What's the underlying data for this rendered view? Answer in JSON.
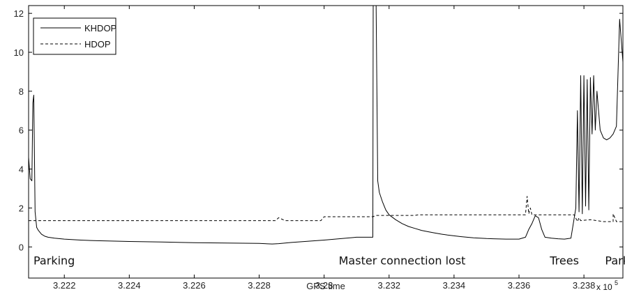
{
  "chart_data": {
    "type": "line",
    "xlabel": "GPS time",
    "ylabel": "",
    "title": "",
    "x_multiplier": {
      "base": "x 10",
      "exponent": "5"
    },
    "xlim": [
      3.2209,
      3.2392
    ],
    "ylim": [
      -1.6,
      12.4
    ],
    "x_ticks": [
      3.222,
      3.224,
      3.226,
      3.228,
      3.23,
      3.232,
      3.234,
      3.236,
      3.238
    ],
    "x_tick_labels": [
      "3.222",
      "3.224",
      "3.226",
      "3.228",
      "3.23",
      "3.232",
      "3.234",
      "3.236",
      "3.238"
    ],
    "y_ticks": [
      0,
      2,
      4,
      6,
      8,
      10,
      12
    ],
    "y_tick_labels": [
      "0",
      "2",
      "4",
      "6",
      "8",
      "10",
      "12"
    ],
    "grid": false,
    "legend": {
      "position": "top-left"
    },
    "series": [
      {
        "name": "KHDOP",
        "style": "solid",
        "x": [
          3.2209,
          3.22095,
          3.221,
          3.22103,
          3.22106,
          3.2211,
          3.22115,
          3.2212,
          3.22125,
          3.2213,
          3.22135,
          3.2214,
          3.2215,
          3.2217,
          3.222,
          3.2225,
          3.223,
          3.224,
          3.225,
          3.226,
          3.227,
          3.228,
          3.2284,
          3.2286,
          3.2288,
          3.229,
          3.23,
          3.231,
          3.2315,
          3.23151,
          3.23155,
          3.2316,
          3.23165,
          3.2317,
          3.2318,
          3.2319,
          3.232,
          3.2322,
          3.2324,
          3.2326,
          3.2328,
          3.233,
          3.2332,
          3.2334,
          3.2336,
          3.2338,
          3.234,
          3.2342,
          3.2344,
          3.2346,
          3.2348,
          3.235,
          3.2352,
          3.2354,
          3.2356,
          3.2358,
          3.236,
          3.2362,
          3.23625,
          3.2363,
          3.2364,
          3.2365,
          3.2366,
          3.2367,
          3.2368,
          3.237,
          3.2372,
          3.2374,
          3.2376,
          3.23775,
          3.2378,
          3.23785,
          3.2379,
          3.23795,
          3.238,
          3.23805,
          3.2381,
          3.23815,
          3.2382,
          3.23825,
          3.2383,
          3.23835,
          3.2384,
          3.23845,
          3.2385,
          3.2386,
          3.2387,
          3.2388,
          3.2389,
          3.239,
          3.2391,
          3.2392
        ],
        "y": [
          4.6,
          3.5,
          3.4,
          7.4,
          7.8,
          1.8,
          1.0,
          0.85,
          0.75,
          0.65,
          0.6,
          0.55,
          0.5,
          0.45,
          0.4,
          0.35,
          0.32,
          0.28,
          0.25,
          0.22,
          0.2,
          0.18,
          0.15,
          0.17,
          0.2,
          0.23,
          0.35,
          0.5,
          0.5,
          12.4,
          12.4,
          12.4,
          3.4,
          2.8,
          2.3,
          1.9,
          1.65,
          1.4,
          1.2,
          1.05,
          0.95,
          0.85,
          0.78,
          0.72,
          0.66,
          0.61,
          0.57,
          0.53,
          0.5,
          0.47,
          0.45,
          0.43,
          0.42,
          0.41,
          0.4,
          0.4,
          0.4,
          0.5,
          0.7,
          0.9,
          1.2,
          1.6,
          1.5,
          0.9,
          0.5,
          0.45,
          0.42,
          0.4,
          0.45,
          2.0,
          7.0,
          1.8,
          8.8,
          1.7,
          8.8,
          2.1,
          8.6,
          1.9,
          8.7,
          5.8,
          8.8,
          6.0,
          8.0,
          7.0,
          6.0,
          5.6,
          5.5,
          5.6,
          5.8,
          6.2,
          11.7,
          9.5
        ]
      },
      {
        "name": "HDOP",
        "style": "dashed",
        "x": [
          3.2209,
          3.2211,
          3.2212,
          3.223,
          3.226,
          3.2285,
          3.2286,
          3.2288,
          3.2299,
          3.23,
          3.2315,
          3.2316,
          3.2328,
          3.2329,
          3.2362,
          3.23625,
          3.2363,
          3.23635,
          3.2364,
          3.2377,
          3.2378,
          3.23785,
          3.2379,
          3.2382,
          3.2386,
          3.2389,
          3.2389,
          3.23895,
          3.239,
          3.2392
        ],
        "y": [
          1.35,
          1.35,
          1.35,
          1.35,
          1.35,
          1.35,
          1.5,
          1.35,
          1.35,
          1.55,
          1.55,
          1.62,
          1.62,
          1.65,
          1.65,
          2.6,
          1.7,
          2.0,
          1.65,
          1.65,
          1.3,
          1.5,
          1.35,
          1.4,
          1.3,
          1.3,
          1.7,
          1.5,
          1.3,
          1.3
        ]
      }
    ],
    "annotations": [
      {
        "text": "Parking",
        "x": 3.2209
      },
      {
        "text": "Master connection lost",
        "x": 3.2303
      },
      {
        "text": "Trees",
        "x": 3.2368
      },
      {
        "text": "Parking",
        "x": 3.2385
      }
    ]
  }
}
